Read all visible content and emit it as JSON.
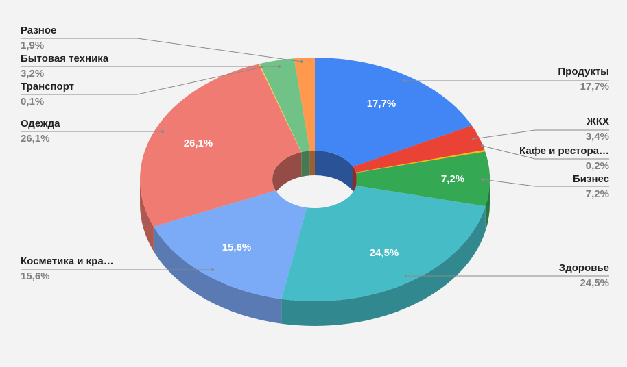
{
  "chart_data": {
    "type": "pie",
    "categories": [
      "Продукты",
      "ЖКХ",
      "Кафе и рестора…",
      "Бизнес",
      "Здоровье",
      "Косметика и кра…",
      "Одежда",
      "Транспорт",
      "Бытовая техника",
      "Разное"
    ],
    "values": [
      17.7,
      3.4,
      0.2,
      7.2,
      24.5,
      15.6,
      26.1,
      0.1,
      3.2,
      1.9
    ],
    "value_labels": [
      "17,7%",
      "3,4%",
      "0,2%",
      "7,2%",
      "24,5%",
      "15,6%",
      "26,1%",
      "0,1%",
      "3,2%",
      "1,9%"
    ],
    "colors": [
      "#4285f4",
      "#ea4335",
      "#fbbc04",
      "#34a853",
      "#46bdc6",
      "#7baaf7",
      "#f07b72",
      "#fcd04f",
      "#71c287",
      "#ff994d"
    ]
  }
}
